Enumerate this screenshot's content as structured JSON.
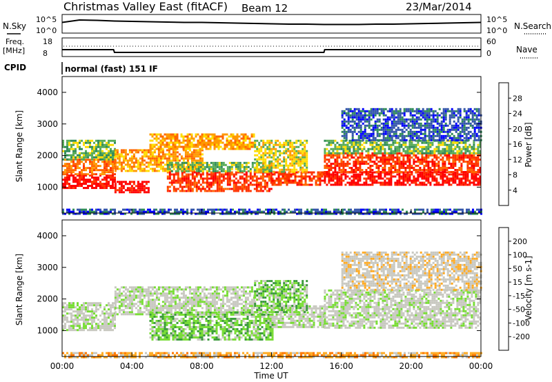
{
  "header": {
    "title": "Christmas Valley East (fitACF)",
    "beam": "Beam 12",
    "date": "23/Mar/2014"
  },
  "labels": {
    "nsky": "N.Sky",
    "nsearch": "N.Search",
    "freq_line1": "Freq.",
    "freq_line2": "[MHz]",
    "nave": "Nave",
    "cpid": "CPID",
    "cpid_value": "normal (fast) 151 IF",
    "noise_tick_hi": "10^5",
    "noise_tick_lo": "10^0",
    "freq_tick_hi": "18",
    "freq_tick_lo": "8",
    "nave_tick_hi": "60",
    "nave_tick_lo": "0"
  },
  "colors": {
    "power_scale": [
      "#0000ff",
      "#3355aa",
      "#2e8b57",
      "#55aa55",
      "#ffdd00",
      "#ff9900",
      "#ff6600",
      "#ff3300",
      "#ff0000"
    ],
    "velocity_scale": [
      "#2a2aa0",
      "#3c6fb0",
      "#3a9a3a",
      "#77dd33",
      "#c8c8c0",
      "#c8c8c0",
      "#ffaa22",
      "#ff7700",
      "#ff3300",
      "#ff0000"
    ],
    "power_palette": [
      "#0000ff",
      "#3355aa",
      "#2e8b57",
      "#55aa55",
      "#ffdd00",
      "#ff9900",
      "#ff6600",
      "#ff3300",
      "#ff0000"
    ],
    "velocity_palette": [
      "#2a2aa0",
      "#3c6fb0",
      "#3a9a3a",
      "#77dd33",
      "#c8c8c0",
      "#c8c8c0",
      "#ffaa22",
      "#ff7700",
      "#ff3300",
      "#ff0000"
    ]
  },
  "chart_data": [
    {
      "type": "line",
      "name_label": "noise",
      "x": [
        0,
        1,
        2,
        3,
        4,
        5,
        6,
        7,
        8,
        9,
        10,
        11,
        12,
        13,
        14,
        15,
        16,
        17,
        18,
        19,
        20,
        21,
        22,
        23,
        24
      ],
      "series": [
        {
          "name": "N.Sky",
          "values": [
            2.9,
            3.6,
            3.5,
            3.3,
            3.2,
            3.1,
            3.0,
            2.9,
            2.9,
            2.8,
            2.7,
            2.6,
            2.5,
            2.4,
            2.4,
            2.3,
            2.3,
            2.3,
            2.4,
            2.4,
            2.5,
            2.6,
            2.7,
            2.8,
            2.9
          ]
        }
      ],
      "ylim": [
        0,
        5
      ]
    },
    {
      "type": "line",
      "name_label": "frequency",
      "x": [
        0,
        2.95,
        3.0,
        15.0,
        15.05,
        24
      ],
      "series": [
        {
          "name": "Freq",
          "values": [
            11.6,
            11.6,
            10.0,
            10.0,
            11.6,
            11.6
          ]
        }
      ],
      "ylim": [
        8,
        18
      ]
    },
    {
      "type": "heatmap",
      "title": "Power",
      "xlabel": "",
      "ylabel": "Slant Range [km]",
      "xlim": [
        0,
        24
      ],
      "ylim": [
        180,
        4500
      ],
      "colorbar_label": "Power [dB]",
      "colorbar_ticks": [
        "4",
        "8",
        "12",
        "16",
        "20",
        "24",
        "28"
      ],
      "bands": [
        {
          "x0": 0,
          "x1": 3,
          "y0": 1000,
          "y1": 1400,
          "level": 8
        },
        {
          "x0": 0,
          "x1": 3,
          "y0": 1400,
          "y1": 1900,
          "level": 6
        },
        {
          "x0": 0,
          "x1": 3,
          "y0": 1900,
          "y1": 2500,
          "level": 3
        },
        {
          "x0": 3,
          "x1": 5,
          "y0": 850,
          "y1": 1200,
          "level": 8
        },
        {
          "x0": 3,
          "x1": 8,
          "y0": 1500,
          "y1": 2200,
          "level": 5
        },
        {
          "x0": 5,
          "x1": 11,
          "y0": 2200,
          "y1": 2700,
          "level": 5
        },
        {
          "x0": 6,
          "x1": 12,
          "y0": 900,
          "y1": 1500,
          "level": 7
        },
        {
          "x0": 6,
          "x1": 12,
          "y0": 1500,
          "y1": 1800,
          "level": 3
        },
        {
          "x0": 12,
          "x1": 15,
          "y0": 1100,
          "y1": 1500,
          "level": 7
        },
        {
          "x0": 11,
          "x1": 14,
          "y0": 1500,
          "y1": 2500,
          "level": 4
        },
        {
          "x0": 15,
          "x1": 24,
          "y0": 1100,
          "y1": 1500,
          "level": 8
        },
        {
          "x0": 15,
          "x1": 24,
          "y0": 1500,
          "y1": 2100,
          "level": 7
        },
        {
          "x0": 15,
          "x1": 24,
          "y0": 2100,
          "y1": 2500,
          "level": 3
        },
        {
          "x0": 16,
          "x1": 24,
          "y0": 2500,
          "y1": 3500,
          "level": 1
        },
        {
          "x0": 0,
          "x1": 24,
          "y0": 180,
          "y1": 320,
          "level": 1
        }
      ]
    },
    {
      "type": "heatmap",
      "title": "Velocity",
      "xlabel": "Time UT",
      "ylabel": "Slant Range [km]",
      "xlim": [
        0,
        24
      ],
      "ylim": [
        180,
        4500
      ],
      "colorbar_label": "Velocity [m s-1]",
      "colorbar_ticks": [
        "-200",
        "-100",
        "-50",
        "-15",
        "15",
        "50",
        "100",
        "200"
      ],
      "x_ticks": [
        "00:00",
        "04:00",
        "08:00",
        "12:00",
        "16:00",
        "20:00",
        "00:00"
      ],
      "bands": [
        {
          "x0": 0,
          "x1": 3,
          "y0": 1000,
          "y1": 1900,
          "level": 4
        },
        {
          "x0": 3,
          "x1": 11,
          "y0": 1500,
          "y1": 2400,
          "level": 4
        },
        {
          "x0": 5,
          "x1": 12,
          "y0": 700,
          "y1": 1600,
          "level": 3
        },
        {
          "x0": 12,
          "x1": 15,
          "y0": 1100,
          "y1": 1800,
          "level": 4
        },
        {
          "x0": 11,
          "x1": 14,
          "y0": 1600,
          "y1": 2600,
          "level": 3
        },
        {
          "x0": 15,
          "x1": 24,
          "y0": 1100,
          "y1": 2300,
          "level": 4
        },
        {
          "x0": 16,
          "x1": 24,
          "y0": 2300,
          "y1": 3500,
          "level": 5
        },
        {
          "x0": 0,
          "x1": 24,
          "y0": 180,
          "y1": 320,
          "level": 6
        }
      ]
    }
  ]
}
